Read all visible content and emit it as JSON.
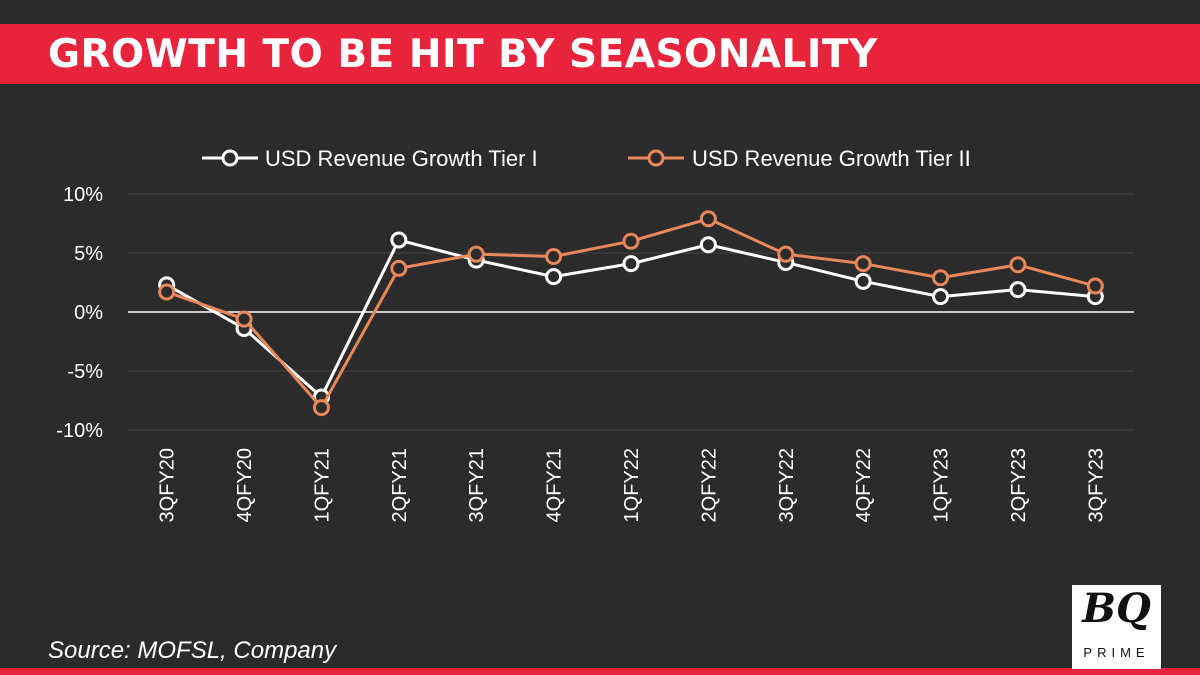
{
  "title": "GROWTH TO BE HIT BY SEASONALITY",
  "source": "Source: MOFSL, Company",
  "logo": {
    "mark": "BQ",
    "sub": "PRIME"
  },
  "colors": {
    "background": "#2b2b2b",
    "accent": "#e8243d",
    "tier1": "#ffffff",
    "tier2": "#e8885a"
  },
  "chart_data": {
    "type": "line",
    "title": "GROWTH TO BE HIT BY SEASONALITY",
    "xlabel": "",
    "ylabel": "",
    "categories": [
      "3QFY20",
      "4QFY20",
      "1QFY21",
      "2QFY21",
      "3QFY21",
      "4QFY21",
      "1QFY22",
      "2QFY22",
      "3QFY22",
      "4QFY22",
      "1QFY23",
      "2QFY23",
      "3QFY23"
    ],
    "series": [
      {
        "name": "USD Revenue Growth Tier I",
        "color": "#ffffff",
        "values": [
          2.3,
          -1.4,
          -7.2,
          6.1,
          4.4,
          3.0,
          4.1,
          5.7,
          4.2,
          2.6,
          1.3,
          1.9,
          1.3
        ]
      },
      {
        "name": "USD Revenue Growth Tier II",
        "color": "#e8885a",
        "values": [
          1.7,
          -0.6,
          -8.1,
          3.7,
          4.9,
          4.7,
          6.0,
          7.9,
          4.9,
          4.1,
          2.9,
          4.0,
          2.2
        ]
      }
    ],
    "ylim": [
      -10,
      10
    ],
    "yticks": [
      10,
      5,
      0,
      -5,
      -10
    ],
    "ytick_labels": [
      "10%",
      "5%",
      "0%",
      "-5%",
      "-10%"
    ],
    "grid": true,
    "legend": "top"
  }
}
